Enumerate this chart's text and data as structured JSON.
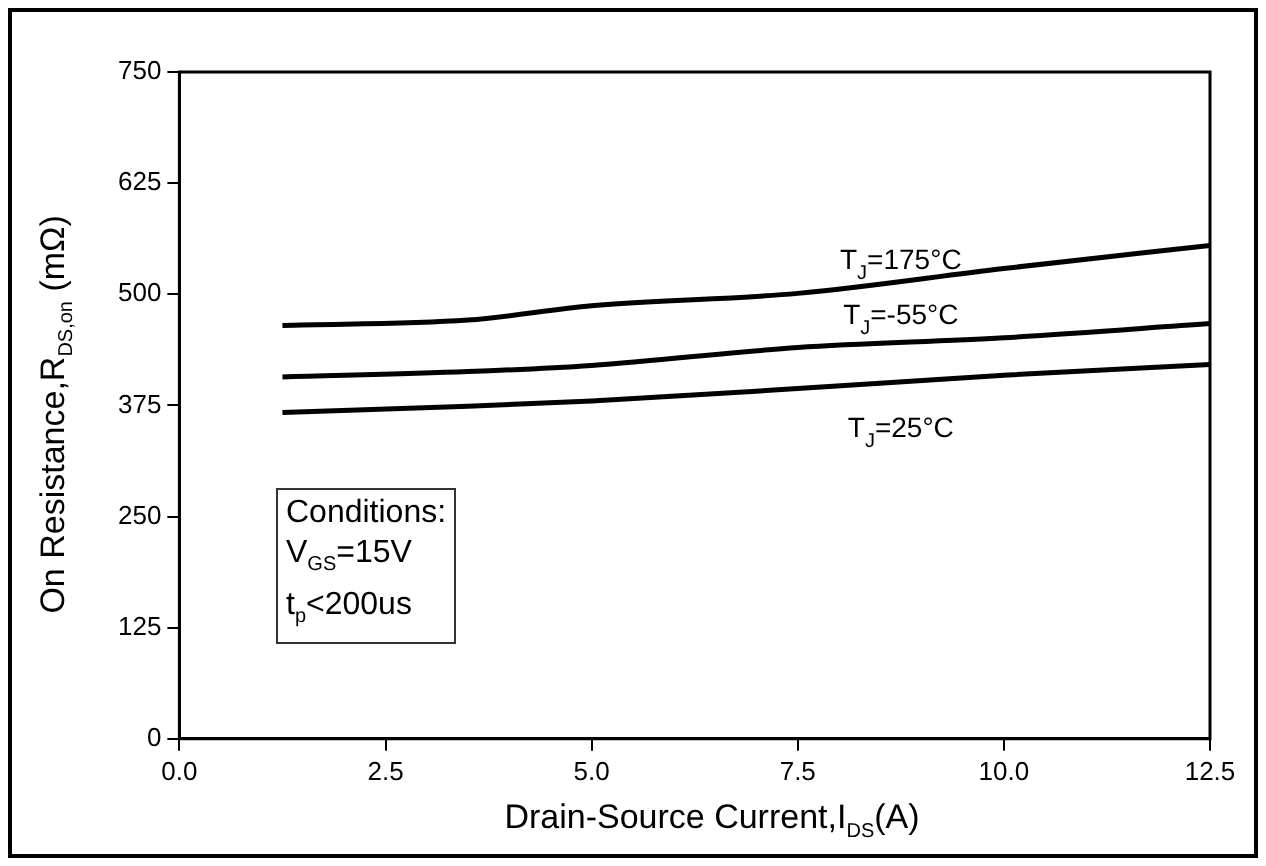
{
  "chart_data": {
    "type": "line",
    "xlabel": "Drain-Source Current,I$_{DS}$(A)",
    "ylabel": "On Resistance,R$_{DS,on}$ (mΩ)",
    "x": [
      1.25,
      3.5,
      5,
      7.5,
      10,
      12.5
    ],
    "series": [
      {
        "name": "T$_{J}$=175°C",
        "color": "#000000",
        "values": [
          465,
          471,
          487,
          501,
          529,
          555
        ]
      },
      {
        "name": "T$_{J}$=-55°C",
        "color": "#000000",
        "values": [
          407,
          413,
          420,
          440,
          451,
          467
        ]
      },
      {
        "name": "T$_{J}$=25°C",
        "color": "#000000",
        "values": [
          367,
          374,
          380,
          394,
          409,
          421
        ]
      }
    ],
    "xlim": [
      0,
      12.5
    ],
    "xticks": [
      {
        "value": 0,
        "label": "0.0"
      },
      2.5,
      {
        "value": 5,
        "label": "5.0"
      },
      7.5,
      {
        "value": 10,
        "label": "10.0"
      },
      12.5
    ],
    "ylim": [
      0,
      750
    ],
    "yticks": [
      0,
      125,
      250,
      375,
      500,
      625,
      750
    ],
    "grid": false,
    "legend": false,
    "marker": "none",
    "line_style": "solid",
    "annotations": [
      "Conditions:",
      "V$_{GS}$=15V",
      "t$_{p}$<200us"
    ]
  }
}
